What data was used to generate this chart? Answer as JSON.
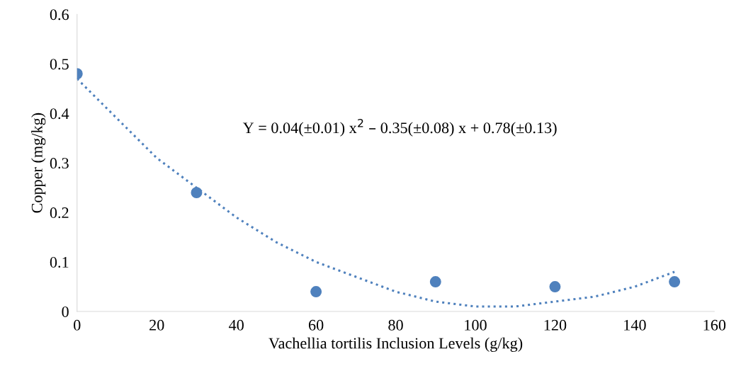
{
  "chart_data": {
    "type": "scatter",
    "xlabel": "Vachellia tortilis Inclusion Levels (g/kg)",
    "ylabel": "Copper (mg/kg)",
    "xlim": [
      0,
      160
    ],
    "xticks": [
      0,
      20,
      40,
      60,
      80,
      100,
      120,
      140,
      160
    ],
    "ylim": [
      0,
      0.6
    ],
    "yticks": [
      0,
      0.1,
      0.2,
      0.3,
      0.4,
      0.5,
      0.6
    ],
    "grid": false,
    "legend": false,
    "annotations": [
      "Y = 0.04(±0.01) x$^{2}$ – 0.35(±0.08) x + 0.78(±0.13)"
    ],
    "series": [
      {
        "color": "#4f81bd",
        "marker": "circle",
        "x": [
          0,
          30,
          60,
          90,
          120,
          150
        ],
        "values": [
          0.48,
          0.24,
          0.04,
          0.06,
          0.05,
          0.06
        ]
      },
      {
        "type": "line",
        "color": "#4f81bd",
        "line_style": "dotted",
        "marker": "none",
        "x": [
          0,
          10,
          20,
          30,
          40,
          50,
          60,
          70,
          80,
          90,
          100,
          110,
          120,
          130,
          140,
          150
        ],
        "values": [
          0.47,
          0.39,
          0.31,
          0.25,
          0.19,
          0.14,
          0.1,
          0.07,
          0.04,
          0.02,
          0.01,
          0.01,
          0.02,
          0.03,
          0.05,
          0.08
        ]
      }
    ]
  }
}
